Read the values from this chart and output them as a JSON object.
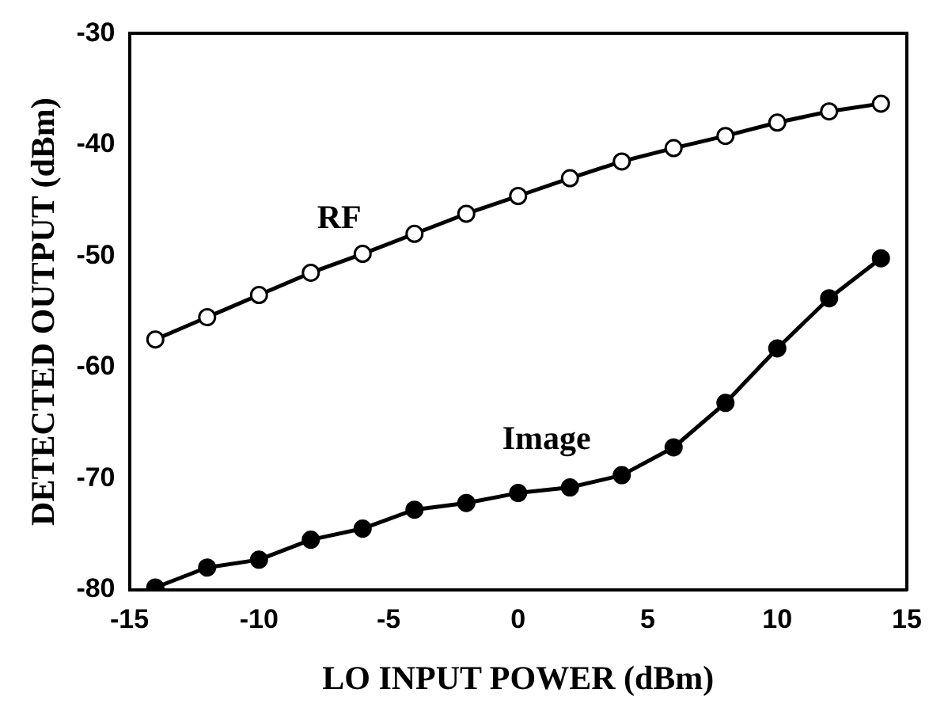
{
  "chart_data": {
    "type": "line",
    "xlabel": "LO INPUT POWER (dBm)",
    "ylabel": "DETECTED OUTPUT (dBm)",
    "x": [
      -14,
      -12,
      -10,
      -8,
      -6,
      -4,
      -2,
      0,
      2,
      4,
      6,
      8,
      10,
      12,
      14
    ],
    "xlim": [
      -15,
      15
    ],
    "xticks": [
      -15,
      -10,
      -5,
      0,
      5,
      10,
      15
    ],
    "ylim": [
      -80,
      -30
    ],
    "yticks": [
      -80,
      -70,
      -60,
      -50,
      -40,
      -30
    ],
    "grid": false,
    "legend": false,
    "marker": "circle",
    "line_style": "solid",
    "series": [
      {
        "name": "RF",
        "color": "#000000",
        "values": [
          -57.5,
          -55.5,
          -53.5,
          -51.5,
          -49.8,
          -48,
          -46.2,
          -44.6,
          -43,
          -41.5,
          -40.3,
          -39.2,
          -38,
          -37,
          -36.3
        ]
      },
      {
        "name": "Image",
        "color": "#000000",
        "values": [
          -79.8,
          -78,
          -77.3,
          -75.5,
          -74.5,
          -72.8,
          -72.2,
          -71.3,
          -70.8,
          -69.7,
          -67.2,
          -63.2,
          -58.3,
          -53.8,
          -50.2
        ]
      }
    ]
  }
}
